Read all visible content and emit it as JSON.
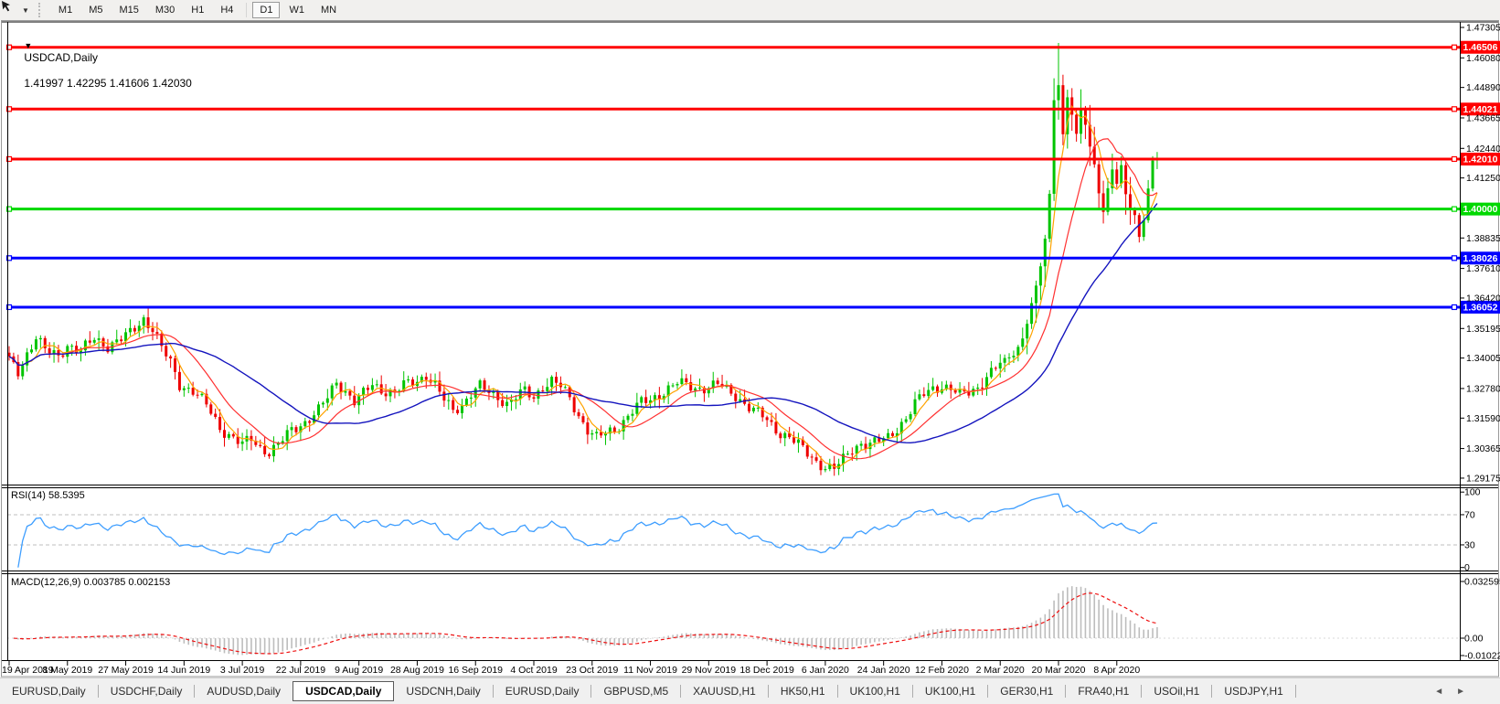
{
  "colors": {
    "bull": "#00C400",
    "bear": "#EE0000",
    "hline_red": "#FF0000",
    "hline_green": "#00D800",
    "hline_blue": "#0000FF",
    "ma_fast": "#FFA300",
    "ma_mid": "#FF3030",
    "ma_slow": "#1414BE",
    "rsi_line": "#3E9EFF",
    "macd_hist": "#BDBDBD",
    "macd_signal": "#EE1111"
  },
  "toolbar": {
    "timeframes": [
      "M1",
      "M5",
      "M15",
      "M30",
      "H1",
      "H4",
      "D1",
      "W1",
      "MN"
    ],
    "active_timeframe": "D1"
  },
  "window_title": {
    "dropdown": "▼",
    "symbol": "USDCAD,Daily",
    "quotes": "1.41997 1.42295 1.41606 1.42030"
  },
  "tabs": {
    "items": [
      "EURUSD,Daily",
      "USDCHF,Daily",
      "AUDUSD,Daily",
      "USDCAD,Daily",
      "USDCNH,Daily",
      "EURUSD,Daily",
      "GBPUSD,M5",
      "XAUUSD,H1",
      "HK50,H1",
      "UK100,H1",
      "UK100,H1",
      "GER30,H1",
      "FRA40,H1",
      "USOil,H1",
      "USDJPY,H1"
    ],
    "active_index": 3,
    "scroll_left": "◄",
    "scroll_right": "►"
  },
  "chart_data": {
    "type": "candlestick",
    "symbol": "USDCAD",
    "timeframe": "Daily",
    "current_bar": {
      "open": 1.41997,
      "high": 1.42295,
      "low": 1.41606,
      "close": 1.4203
    },
    "spike_high": 1.4668,
    "bars_visible": 257,
    "y_axis": {
      "price_top": 1.47305,
      "price_bottom": 1.29175,
      "ticks": [
        "1.47305",
        "1.46080",
        "1.44890",
        "1.43665",
        "1.42440",
        "1.41250",
        "1.38835",
        "1.37610",
        "1.36420",
        "1.35195",
        "1.34005",
        "1.32780",
        "1.31590",
        "1.30365",
        "1.29175"
      ]
    },
    "x_axis": {
      "labels": [
        {
          "bar": 0,
          "label": "19 Apr 2019"
        },
        {
          "bar": 13,
          "label": "8 May 2019"
        },
        {
          "bar": 26,
          "label": "27 May 2019"
        },
        {
          "bar": 39,
          "label": "14 Jun 2019"
        },
        {
          "bar": 52,
          "label": "3 Jul 2019"
        },
        {
          "bar": 65,
          "label": "22 Jul 2019"
        },
        {
          "bar": 78,
          "label": "9 Aug 2019"
        },
        {
          "bar": 91,
          "label": "28 Aug 2019"
        },
        {
          "bar": 104,
          "label": "16 Sep 2019"
        },
        {
          "bar": 117,
          "label": "4 Oct 2019"
        },
        {
          "bar": 130,
          "label": "23 Oct 2019"
        },
        {
          "bar": 143,
          "label": "11 Nov 2019"
        },
        {
          "bar": 156,
          "label": "29 Nov 2019"
        },
        {
          "bar": 169,
          "label": "18 Dec 2019"
        },
        {
          "bar": 182,
          "label": "6 Jan 2020"
        },
        {
          "bar": 195,
          "label": "24 Jan 2020"
        },
        {
          "bar": 208,
          "label": "12 Feb 2020"
        },
        {
          "bar": 221,
          "label": "2 Mar 2020"
        },
        {
          "bar": 234,
          "label": "20 Mar 2020"
        },
        {
          "bar": 247,
          "label": "8 Apr 2020"
        }
      ]
    },
    "horizontal_lines": [
      {
        "price": 1.46506,
        "label": "1.46506",
        "color": "red"
      },
      {
        "price": 1.44021,
        "label": "1.44021",
        "color": "red"
      },
      {
        "price": 1.4201,
        "label": "1.42010",
        "color": "red"
      },
      {
        "price": 1.4,
        "label": "1.40000",
        "color": "green"
      },
      {
        "price": 1.38026,
        "label": "1.38026",
        "color": "blue"
      },
      {
        "price": 1.36052,
        "label": "1.36052",
        "color": "blue"
      }
    ],
    "moving_averages": [
      {
        "period": 5,
        "color": "fast"
      },
      {
        "period": 13,
        "color": "mid"
      },
      {
        "period": 34,
        "color": "slow"
      }
    ],
    "price_path": [
      [
        0,
        1.339
      ],
      [
        2,
        1.3345
      ],
      [
        4,
        1.342
      ],
      [
        6,
        1.3485
      ],
      [
        8,
        1.343
      ],
      [
        11,
        1.341
      ],
      [
        13,
        1.3455
      ],
      [
        16,
        1.3425
      ],
      [
        19,
        1.348
      ],
      [
        22,
        1.345
      ],
      [
        25,
        1.3475
      ],
      [
        27,
        1.35
      ],
      [
        30,
        1.356
      ],
      [
        32,
        1.352
      ],
      [
        34,
        1.344
      ],
      [
        36,
        1.338
      ],
      [
        38,
        1.3295
      ],
      [
        41,
        1.327
      ],
      [
        44,
        1.321
      ],
      [
        47,
        1.312
      ],
      [
        50,
        1.308
      ],
      [
        52,
        1.305
      ],
      [
        54,
        1.3075
      ],
      [
        56,
        1.304
      ],
      [
        58,
        1.3025
      ],
      [
        60,
        1.305
      ],
      [
        63,
        1.311
      ],
      [
        66,
        1.3145
      ],
      [
        69,
        1.319
      ],
      [
        71,
        1.324
      ],
      [
        73,
        1.3305
      ],
      [
        75,
        1.327
      ],
      [
        77,
        1.3225
      ],
      [
        79,
        1.3255
      ],
      [
        81,
        1.3295
      ],
      [
        83,
        1.3275
      ],
      [
        86,
        1.326
      ],
      [
        88,
        1.329
      ],
      [
        91,
        1.331
      ],
      [
        93,
        1.3335
      ],
      [
        95,
        1.329
      ],
      [
        97,
        1.323
      ],
      [
        99,
        1.319
      ],
      [
        101,
        1.3215
      ],
      [
        103,
        1.326
      ],
      [
        105,
        1.3285
      ],
      [
        107,
        1.326
      ],
      [
        109,
        1.3245
      ],
      [
        111,
        1.322
      ],
      [
        113,
        1.3245
      ],
      [
        115,
        1.3265
      ],
      [
        117,
        1.324
      ],
      [
        119,
        1.329
      ],
      [
        121,
        1.331
      ],
      [
        123,
        1.3285
      ],
      [
        125,
        1.3235
      ],
      [
        127,
        1.317
      ],
      [
        129,
        1.3115
      ],
      [
        131,
        1.308
      ],
      [
        133,
        1.3095
      ],
      [
        135,
        1.311
      ],
      [
        137,
        1.315
      ],
      [
        139,
        1.319
      ],
      [
        141,
        1.322
      ],
      [
        143,
        1.323
      ],
      [
        145,
        1.3255
      ],
      [
        147,
        1.328
      ],
      [
        149,
        1.33
      ],
      [
        151,
        1.329
      ],
      [
        153,
        1.328
      ],
      [
        156,
        1.3285
      ],
      [
        158,
        1.3295
      ],
      [
        160,
        1.327
      ],
      [
        162,
        1.325
      ],
      [
        164,
        1.322
      ],
      [
        166,
        1.319
      ],
      [
        168,
        1.3165
      ],
      [
        170,
        1.313
      ],
      [
        172,
        1.31
      ],
      [
        174,
        1.3085
      ],
      [
        176,
        1.305
      ],
      [
        178,
        1.3015
      ],
      [
        180,
        1.2985
      ],
      [
        182,
        1.2965
      ],
      [
        184,
        1.2955
      ],
      [
        186,
        1.299
      ],
      [
        188,
        1.3035
      ],
      [
        190,
        1.306
      ],
      [
        192,
        1.3055
      ],
      [
        194,
        1.3065
      ],
      [
        196,
        1.308
      ],
      [
        198,
        1.312
      ],
      [
        200,
        1.316
      ],
      [
        202,
        1.3215
      ],
      [
        204,
        1.3255
      ],
      [
        206,
        1.328
      ],
      [
        208,
        1.329
      ],
      [
        210,
        1.3275
      ],
      [
        212,
        1.325
      ],
      [
        214,
        1.3265
      ],
      [
        216,
        1.3285
      ],
      [
        218,
        1.3325
      ],
      [
        220,
        1.336
      ],
      [
        221,
        1.338
      ],
      [
        222,
        1.3395
      ],
      [
        223,
        1.3405
      ],
      [
        224,
        1.3415
      ],
      [
        225,
        1.3445
      ],
      [
        226,
        1.348
      ],
      [
        227,
        1.354
      ],
      [
        228,
        1.362
      ],
      [
        229,
        1.369
      ],
      [
        230,
        1.377
      ],
      [
        231,
        1.388
      ],
      [
        232,
        1.406
      ],
      [
        233,
        1.444
      ],
      [
        234,
        1.45
      ],
      [
        235,
        1.43
      ],
      [
        236,
        1.445
      ],
      [
        237,
        1.438
      ],
      [
        238,
        1.43
      ],
      [
        239,
        1.44
      ],
      [
        240,
        1.434
      ],
      [
        241,
        1.425
      ],
      [
        242,
        1.418
      ],
      [
        243,
        1.407
      ],
      [
        244,
        1.399
      ],
      [
        245,
        1.408
      ],
      [
        246,
        1.416
      ],
      [
        247,
        1.41
      ],
      [
        248,
        1.417
      ],
      [
        249,
        1.406
      ],
      [
        250,
        1.4
      ],
      [
        251,
        1.3975
      ],
      [
        252,
        1.389
      ],
      [
        253,
        1.396
      ],
      [
        254,
        1.408
      ],
      [
        255,
        1.419
      ],
      [
        256,
        1.4203
      ]
    ],
    "indicators": {
      "rsi": {
        "label": "RSI(14) 58.5395",
        "period": 14,
        "current": 58.5395,
        "levels": [
          70,
          30
        ],
        "axis_ticks": [
          "100",
          "70",
          "30",
          "0"
        ],
        "axis_values": [
          100,
          70,
          30,
          0
        ]
      },
      "macd": {
        "label": "MACD(12,26,9) 0.003785 0.002153",
        "fast": 12,
        "slow": 26,
        "signal": 9,
        "current_main": 0.003785,
        "current_signal": 0.002153,
        "axis_ticks": [
          "0.032595",
          "0.00",
          "-0.010227"
        ],
        "axis_values": [
          0.032595,
          0,
          -0.010227
        ]
      }
    }
  }
}
